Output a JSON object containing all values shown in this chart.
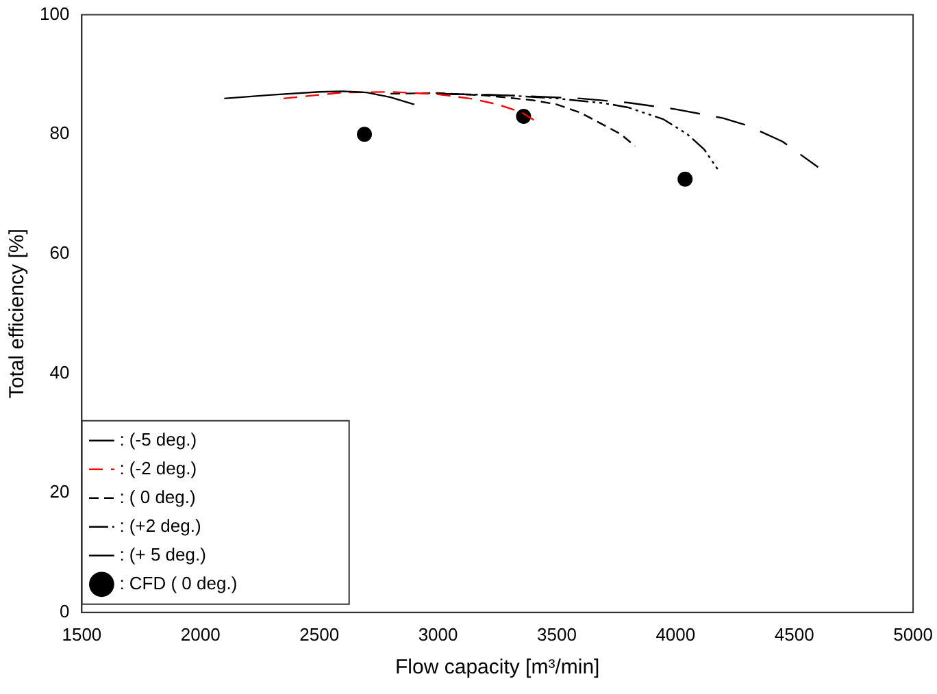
{
  "chart_data": {
    "type": "line",
    "xlabel": "Flow capacity [m³/min]",
    "ylabel": "Total efficiency [%]",
    "xlim": [
      1500,
      5000
    ],
    "xticks": [
      1500,
      2000,
      2500,
      3000,
      3500,
      4000,
      4500,
      5000
    ],
    "ylim": [
      0,
      100
    ],
    "yticks": [
      0,
      20,
      40,
      60,
      80,
      100
    ],
    "grid": false,
    "legend": "bottom left",
    "marker": "none",
    "series": [
      {
        "name": ": (-5 deg.)",
        "color": "#000000",
        "line_style": "solid",
        "x": [
          2100,
          2300,
          2500,
          2600,
          2700,
          2800,
          2900
        ],
        "values": [
          86,
          86.6,
          87.1,
          87.2,
          87,
          86.2,
          85
        ]
      },
      {
        "name": ": (-2 deg.)",
        "color": "#ff0000",
        "line_style": "dashed",
        "x": [
          2350,
          2500,
          2600,
          2800,
          3000,
          3150,
          3250,
          3350,
          3420
        ],
        "values": [
          86,
          86.6,
          87,
          87.1,
          86.7,
          85.9,
          85,
          83.7,
          82
        ]
      },
      {
        "name": ": ( 0 deg.)",
        "color": "#000000",
        "line_style": "dashed",
        "x": [
          2800,
          3000,
          3200,
          3400,
          3500,
          3600,
          3700,
          3770,
          3830
        ],
        "values": [
          86.8,
          86.9,
          86.5,
          85.7,
          85,
          83.6,
          81.5,
          80,
          78
        ]
      },
      {
        "name": ": (+2 deg.)",
        "color": "#000000",
        "line_style": "dotted",
        "x": [
          3000,
          3300,
          3500,
          3700,
          3800,
          3950,
          4050,
          4120,
          4180
        ],
        "values": [
          86.8,
          86.5,
          86,
          85.2,
          84.5,
          82.5,
          80,
          77.5,
          74
        ]
      },
      {
        "name": ": (+ 5 deg.)",
        "color": "#000000",
        "line_style": "dashed",
        "x": [
          3000,
          3300,
          3600,
          3800,
          4000,
          4200,
          4300,
          4450,
          4600
        ],
        "values": [
          86.8,
          86.5,
          86,
          85.3,
          84.2,
          82.7,
          81.5,
          78.8,
          74.5
        ]
      },
      {
        "name": ": CFD ( 0 deg.)",
        "type": "scatter",
        "marker": "circle",
        "color": "#000000",
        "x": [
          2690,
          3360,
          4040
        ],
        "values": [
          80,
          83,
          72.5
        ]
      }
    ]
  }
}
